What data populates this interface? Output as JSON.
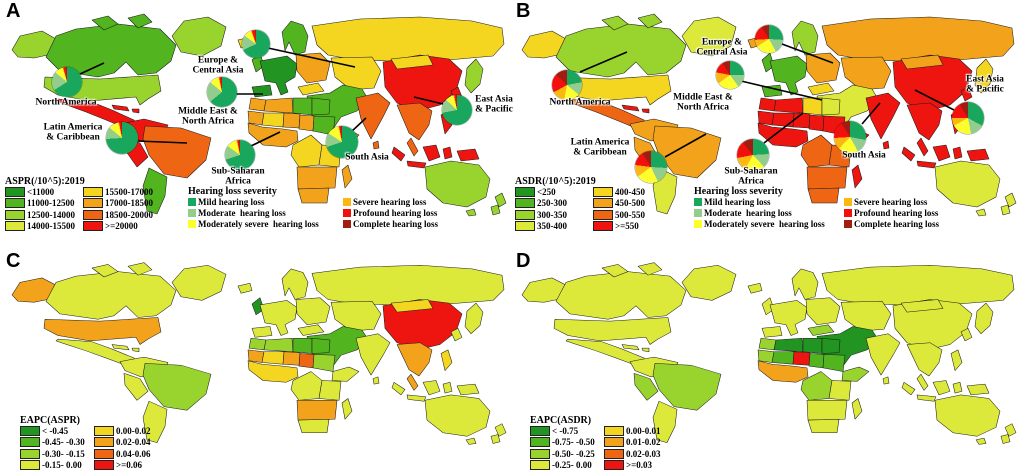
{
  "figure": {
    "ramp_colors": {
      "c1": "#219421",
      "c2": "#52b41f",
      "c3": "#99d42e",
      "c4": "#dce93a",
      "c5": "#f4d520",
      "c6": "#f2a21b",
      "c7": "#ee6514",
      "c8": "#ee1511"
    },
    "severity_colors": {
      "mild": "#18a75c",
      "moderate": "#92cd8e",
      "moderately_severe": "#fcff2d",
      "severe": "#fdb713",
      "profound": "#f3100c",
      "complete": "#a21d11"
    },
    "severity_legend": {
      "title": "Hearing loss severity",
      "col1": [
        {
          "key": "mild",
          "label": "Mild hearing loss"
        },
        {
          "key": "moderate",
          "label": "Moderate  hearing loss"
        },
        {
          "key": "moderately_severe",
          "label": "Moderately severe  hearing loss"
        }
      ],
      "col2": [
        {
          "key": "severe",
          "label": "Severe hearing loss"
        },
        {
          "key": "profound",
          "label": "Profound hearing loss"
        },
        {
          "key": "complete",
          "label": "Complete hearing loss"
        }
      ]
    },
    "region_labels": {
      "north_america": [
        "North America"
      ],
      "europe_central_asia": [
        "Europe &",
        "Central Asia"
      ],
      "middle_east_north_africa": [
        "Middle East &",
        "North Africa"
      ],
      "latin_america_caribbean": [
        "Latin America",
        "& Caribbean"
      ],
      "sub_saharan_africa": [
        "Sub-Saharan",
        "Africa"
      ],
      "south_asia": [
        "South Asia"
      ],
      "east_asia_pacific": [
        "East Asia",
        "& Pacific"
      ]
    },
    "panels": [
      {
        "id": "A",
        "letter": "A",
        "legend": {
          "title": "ASPR(/10^5):2019",
          "classes": [
            {
              "label": "<11000",
              "color_key": "c1"
            },
            {
              "label": "11000-12500",
              "color_key": "c2"
            },
            {
              "label": "12500-14000",
              "color_key": "c3"
            },
            {
              "label": "14000-15500",
              "color_key": "c4"
            },
            {
              "label": "15500-17000",
              "color_key": "c5"
            },
            {
              "label": "17000-18500",
              "color_key": "c6"
            },
            {
              "label": "18500-20000",
              "color_key": "c7"
            },
            {
              "label": ">=20000",
              "color_key": "c8"
            }
          ]
        },
        "has_severity_legend": true,
        "pies": {
          "north_america": [
            66,
            20,
            9,
            1,
            3,
            1
          ],
          "europe_central_asia": [
            68,
            17,
            9,
            1,
            4,
            1
          ],
          "middle_east_north_africa": [
            64,
            22,
            10,
            1,
            2,
            1
          ],
          "latin_america_caribbean": [
            74,
            12,
            10,
            1,
            2,
            1
          ],
          "sub_saharan_africa": [
            70,
            15,
            11,
            1,
            2,
            1
          ],
          "south_asia": [
            70,
            14,
            12,
            1,
            2,
            1
          ],
          "east_asia_pacific": [
            72,
            15,
            9,
            1,
            2,
            1
          ]
        },
        "fills": {
          "alaska": "c3",
          "canada": "c2",
          "greenland": "c3",
          "usa": "c3",
          "mexico": "c8",
          "caribbean": "c8",
          "colombia": "c8",
          "peru": "c8",
          "brazil": "c7",
          "southern_cone": "c2",
          "iceland": "c5",
          "uk": "c2",
          "iberia": "c1",
          "west_europe": "c1",
          "scandinavia": "c2",
          "east_europe": "c6",
          "russia": "c5",
          "central_asia": "c5",
          "turkey": "c5",
          "middle_east": "c2",
          "morocco": "c6",
          "algeria": "c6",
          "libya": "c2",
          "egypt": "c2",
          "mauritania": "c6",
          "mali": "c5",
          "niger": "c6",
          "chad": "c6",
          "sudan": "c2",
          "west_africa": "c6",
          "ethiopia": "c6",
          "central_africa": "c5",
          "east_africa": "c5",
          "southern_africa": "c6",
          "south_africa": "c6",
          "madagascar": "c6",
          "india": "c7",
          "sri_lanka": "c7",
          "china": "c8",
          "korea": "c8",
          "mongolia": "c5",
          "japan": "c3",
          "se_asia": "c7",
          "indonesia": "c8",
          "philippines": "c8",
          "australia": "c3",
          "new_zealand": "c3"
        }
      },
      {
        "id": "B",
        "letter": "B",
        "legend": {
          "title": "ASDR(/10^5):2019",
          "classes": [
            {
              "label": "<250",
              "color_key": "c1"
            },
            {
              "label": "250-300",
              "color_key": "c2"
            },
            {
              "label": "300-350",
              "color_key": "c3"
            },
            {
              "label": "350-400",
              "color_key": "c4"
            },
            {
              "label": "400-450",
              "color_key": "c5"
            },
            {
              "label": "450-500",
              "color_key": "c6"
            },
            {
              "label": "500-550",
              "color_key": "c7"
            },
            {
              "label": ">=550",
              "color_key": "c8"
            }
          ]
        },
        "has_severity_legend": true,
        "pies": {
          "north_america": [
            22,
            14,
            17,
            14,
            20,
            13
          ],
          "europe_central_asia": [
            26,
            16,
            24,
            8,
            17,
            9
          ],
          "middle_east_north_africa": [
            25,
            15,
            25,
            13,
            13,
            9
          ],
          "latin_america_caribbean": [
            26,
            17,
            22,
            12,
            14,
            9
          ],
          "sub_saharan_africa": [
            24,
            14,
            20,
            14,
            17,
            11
          ],
          "south_asia": [
            28,
            14,
            20,
            12,
            17,
            9
          ],
          "east_asia_pacific": [
            33,
            14,
            20,
            8,
            16,
            9
          ]
        },
        "fills": {
          "alaska": "c5",
          "canada": "c3",
          "greenland": "c4",
          "usa": "c5",
          "mexico": "c7",
          "caribbean": "c8",
          "colombia": "c6",
          "peru": "c6",
          "brazil": "c6",
          "southern_cone": "c4",
          "iceland": "c6",
          "uk": "c2",
          "iberia": "c2",
          "west_europe": "c2",
          "scandinavia": "c3",
          "east_europe": "c6",
          "russia": "c6",
          "central_asia": "c6",
          "turkey": "c5",
          "middle_east": "c4",
          "morocco": "c8",
          "algeria": "c8",
          "libya": "c5",
          "egypt": "c4",
          "mauritania": "c8",
          "mali": "c8",
          "niger": "c8",
          "chad": "c8",
          "sudan": "c8",
          "west_africa": "c8",
          "ethiopia": "c8",
          "central_africa": "c7",
          "east_africa": "c7",
          "southern_africa": "c7",
          "south_africa": "c7",
          "madagascar": "c8",
          "india": "c8",
          "sri_lanka": "c8",
          "china": "c8",
          "korea": "c8",
          "mongolia": "c6",
          "japan": "c5",
          "se_asia": "c8",
          "indonesia": "c8",
          "philippines": "c8",
          "australia": "c4",
          "new_zealand": "c4"
        }
      },
      {
        "id": "C",
        "letter": "C",
        "legend": {
          "title": "EAPC(ASPR)",
          "classes": [
            {
              "label": "< -0.45",
              "color_key": "c1"
            },
            {
              "label": "-0.45- -0.30",
              "color_key": "c2"
            },
            {
              "label": "-0.30- -0.15",
              "color_key": "c3"
            },
            {
              "label": "-0.15- 0.00",
              "color_key": "c4"
            },
            {
              "label": "0.00-0.02",
              "color_key": "c5"
            },
            {
              "label": "0.02-0.04",
              "color_key": "c6"
            },
            {
              "label": "0.04-0.06",
              "color_key": "c7"
            },
            {
              "label": ">=0.06",
              "color_key": "c8"
            }
          ]
        },
        "has_severity_legend": false,
        "pies": null,
        "fills": {
          "alaska": "c6",
          "canada": "c4",
          "greenland": "c4",
          "usa": "c6",
          "mexico": "c4",
          "caribbean": "c4",
          "colombia": "c4",
          "peru": "c4",
          "brazil": "c3",
          "southern_cone": "c4",
          "iceland": "c4",
          "uk": "c1",
          "iberia": "c4",
          "west_europe": "c4",
          "scandinavia": "c4",
          "east_europe": "c4",
          "russia": "c4",
          "central_asia": "c4",
          "turkey": "c4",
          "middle_east": "c2",
          "morocco": "c3",
          "algeria": "c3",
          "libya": "c2",
          "egypt": "c2",
          "mauritania": "c6",
          "mali": "c5",
          "niger": "c6",
          "chad": "c7",
          "sudan": "c3",
          "west_africa": "c5",
          "ethiopia": "c4",
          "central_africa": "c4",
          "east_africa": "c4",
          "southern_africa": "c6",
          "south_africa": "c4",
          "madagascar": "c4",
          "india": "c4",
          "sri_lanka": "c4",
          "china": "c8",
          "korea": "c4",
          "mongolia": "c5",
          "japan": "c4",
          "se_asia": "c6",
          "indonesia": "c4",
          "philippines": "c5",
          "australia": "c4",
          "new_zealand": "c4"
        }
      },
      {
        "id": "D",
        "letter": "D",
        "legend": {
          "title": "EAPC(ASDR)",
          "classes": [
            {
              "label": "< -0.75",
              "color_key": "c1"
            },
            {
              "label": "-0.75- -0.50",
              "color_key": "c2"
            },
            {
              "label": "-0.50- -0.25",
              "color_key": "c3"
            },
            {
              "label": "-0.25- 0.00",
              "color_key": "c4"
            },
            {
              "label": "0.00-0.01",
              "color_key": "c5"
            },
            {
              "label": "0.01-0.02",
              "color_key": "c6"
            },
            {
              "label": "0.02-0.03",
              "color_key": "c7"
            },
            {
              "label": ">=0.03",
              "color_key": "c8"
            }
          ]
        },
        "has_severity_legend": false,
        "pies": null,
        "fills": {
          "alaska": "c4",
          "canada": "c4",
          "greenland": "c4",
          "usa": "c4",
          "mexico": "c4",
          "caribbean": "c4",
          "colombia": "c4",
          "peru": "c3",
          "brazil": "c3",
          "southern_cone": "c4",
          "iceland": "c4",
          "uk": "c4",
          "iberia": "c4",
          "west_europe": "c4",
          "scandinavia": "c4",
          "east_europe": "c4",
          "russia": "c4",
          "central_asia": "c4",
          "turkey": "c3",
          "middle_east": "c1",
          "morocco": "c3",
          "algeria": "c1",
          "libya": "c1",
          "egypt": "c1",
          "mauritania": "c3",
          "mali": "c2",
          "niger": "c8",
          "chad": "c2",
          "sudan": "c2",
          "west_africa": "c6",
          "ethiopia": "c3",
          "central_africa": "c3",
          "east_africa": "c4",
          "southern_africa": "c4",
          "south_africa": "c4",
          "madagascar": "c4",
          "india": "c4",
          "sri_lanka": "c4",
          "china": "c4",
          "korea": "c4",
          "mongolia": "c4",
          "japan": "c4",
          "se_asia": "c4",
          "indonesia": "c4",
          "philippines": "c4",
          "australia": "c4",
          "new_zealand": "c4"
        }
      }
    ]
  }
}
